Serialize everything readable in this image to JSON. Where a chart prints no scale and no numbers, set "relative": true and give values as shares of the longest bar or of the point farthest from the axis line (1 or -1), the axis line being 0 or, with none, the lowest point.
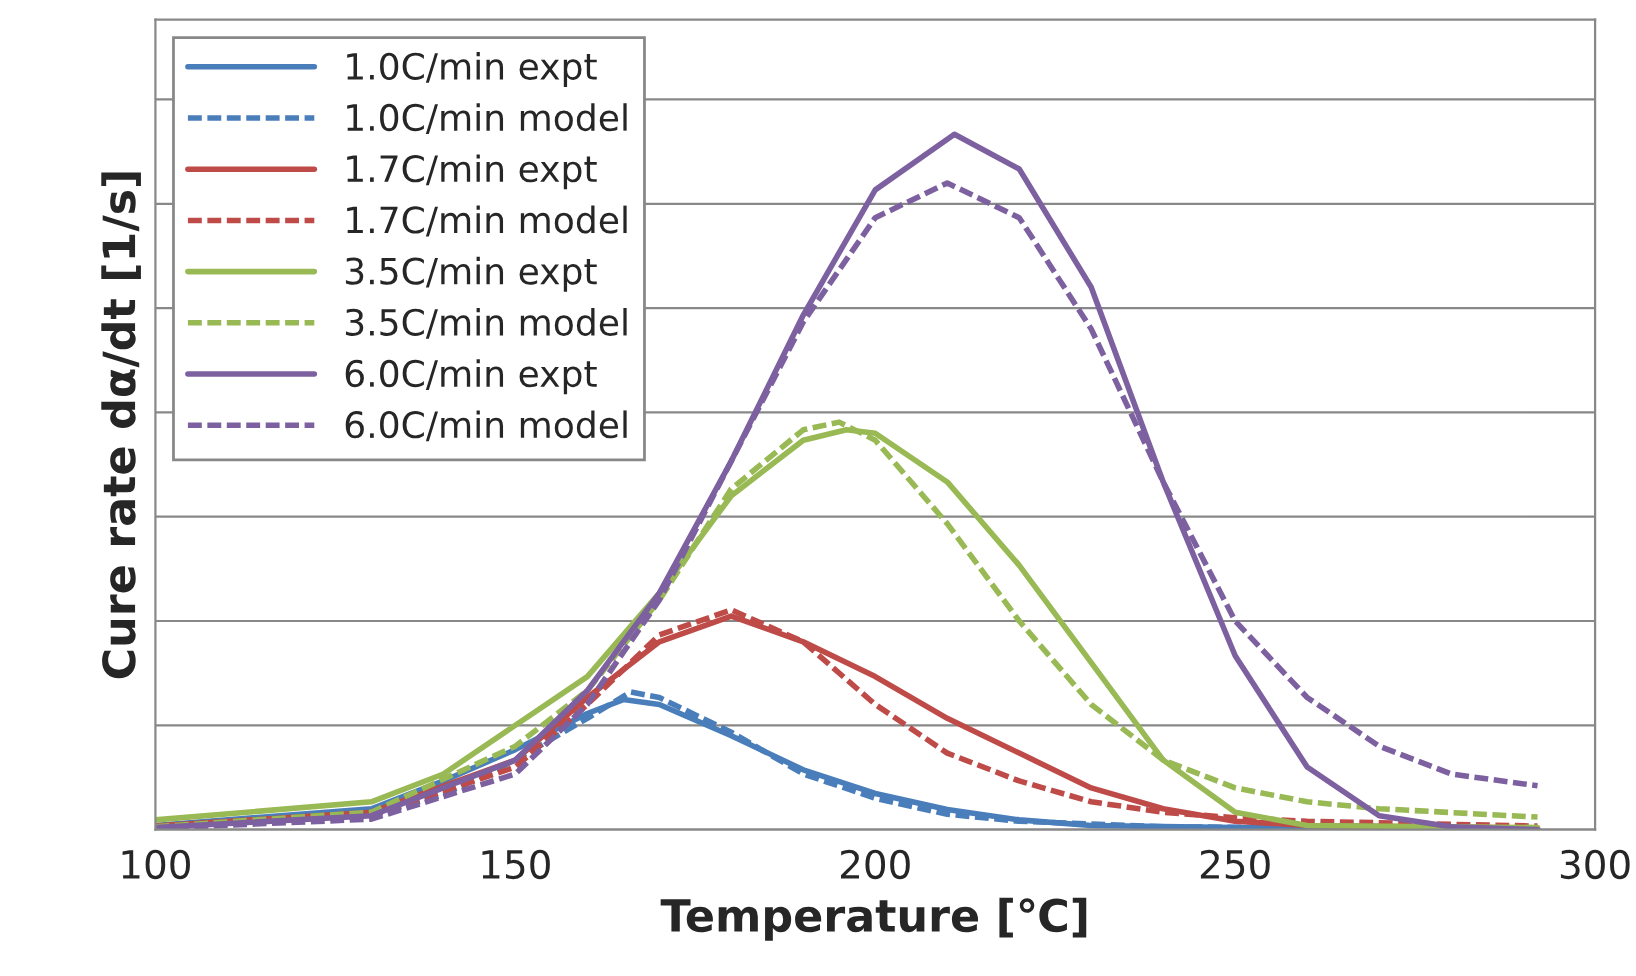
{
  "chart_data": {
    "type": "line",
    "relative": true,
    "xlabel": "Temperature [℃]",
    "ylabel": "Cure rate dα/dt [1/s]",
    "xlim": [
      100,
      300
    ],
    "xticks": [
      100,
      150,
      200,
      250,
      300
    ],
    "grid": "y",
    "legend": "top left",
    "tick_labels": "x",
    "series": [
      {
        "name": "1.0C/min expt",
        "color": "#4a7ebb",
        "line_style": "solid",
        "x": [
          100,
          130,
          140,
          150,
          160,
          165,
          170,
          180,
          190,
          200,
          210,
          220,
          230,
          250,
          292
        ],
        "values": [
          0.006,
          0.03,
          0.07,
          0.115,
          0.167,
          0.187,
          0.18,
          0.135,
          0.086,
          0.052,
          0.029,
          0.014,
          0.006,
          0.003,
          0
        ]
      },
      {
        "name": "1.0C/min model",
        "color": "#4a7ebb",
        "line_style": "dashed",
        "x": [
          100,
          130,
          140,
          150,
          160,
          166,
          170,
          180,
          190,
          200,
          210,
          220,
          240,
          292
        ],
        "values": [
          0.003,
          0.02,
          0.05,
          0.1,
          0.16,
          0.198,
          0.19,
          0.14,
          0.08,
          0.045,
          0.022,
          0.012,
          0.004,
          0
        ]
      },
      {
        "name": "1.7C/min expt",
        "color": "#be4b48",
        "line_style": "solid",
        "x": [
          100,
          130,
          150,
          160,
          170,
          180,
          190,
          200,
          210,
          220,
          230,
          240,
          250,
          260,
          292
        ],
        "values": [
          0.005,
          0.025,
          0.1,
          0.19,
          0.27,
          0.307,
          0.27,
          0.22,
          0.16,
          0.11,
          0.06,
          0.03,
          0.012,
          0.006,
          0.002
        ]
      },
      {
        "name": "1.7C/min model",
        "color": "#be4b48",
        "line_style": "dashed",
        "x": [
          100,
          130,
          150,
          160,
          170,
          180,
          190,
          200,
          210,
          220,
          230,
          240,
          250,
          260,
          292
        ],
        "values": [
          0.003,
          0.02,
          0.09,
          0.18,
          0.28,
          0.316,
          0.27,
          0.18,
          0.11,
          0.07,
          0.04,
          0.025,
          0.017,
          0.012,
          0.005
        ]
      },
      {
        "name": "3.5C/min expt",
        "color": "#98b954",
        "line_style": "solid",
        "x": [
          100,
          130,
          140,
          150,
          160,
          170,
          180,
          190,
          196,
          200,
          210,
          220,
          230,
          240,
          250,
          260,
          292
        ],
        "values": [
          0.014,
          0.04,
          0.08,
          0.15,
          0.22,
          0.34,
          0.48,
          0.56,
          0.575,
          0.57,
          0.5,
          0.38,
          0.24,
          0.1,
          0.025,
          0.006,
          0.003
        ]
      },
      {
        "name": "3.5C/min model",
        "color": "#98b954",
        "line_style": "dashed",
        "x": [
          100,
          130,
          150,
          160,
          170,
          180,
          190,
          195,
          200,
          210,
          220,
          230,
          240,
          250,
          260,
          270,
          292
        ],
        "values": [
          0.004,
          0.025,
          0.12,
          0.2,
          0.33,
          0.49,
          0.575,
          0.586,
          0.56,
          0.44,
          0.3,
          0.18,
          0.1,
          0.06,
          0.04,
          0.03,
          0.018
        ]
      },
      {
        "name": "6.0C/min expt",
        "color": "#7d60a0",
        "line_style": "solid",
        "x": [
          100,
          130,
          150,
          160,
          170,
          180,
          190,
          200,
          211,
          220,
          230,
          240,
          250,
          260,
          270,
          280,
          292
        ],
        "values": [
          0.003,
          0.02,
          0.1,
          0.2,
          0.34,
          0.53,
          0.74,
          0.92,
          1.0,
          0.95,
          0.78,
          0.5,
          0.25,
          0.09,
          0.02,
          0.004,
          0
        ]
      },
      {
        "name": "6.0C/min model",
        "color": "#7d60a0",
        "line_style": "dashed",
        "x": [
          100,
          130,
          150,
          160,
          170,
          180,
          190,
          200,
          210,
          220,
          230,
          240,
          250,
          260,
          270,
          280,
          292
        ],
        "values": [
          0.002,
          0.015,
          0.08,
          0.18,
          0.33,
          0.53,
          0.73,
          0.88,
          0.93,
          0.88,
          0.72,
          0.5,
          0.3,
          0.19,
          0.12,
          0.08,
          0.063
        ]
      }
    ]
  }
}
